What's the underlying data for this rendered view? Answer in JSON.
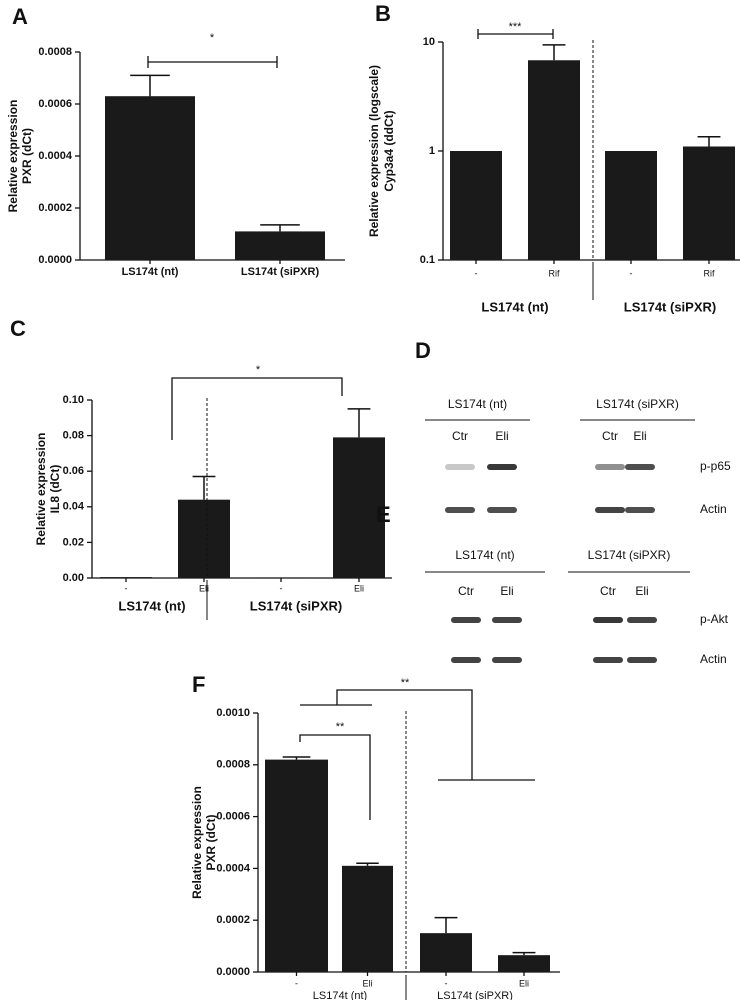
{
  "chart_data": [
    {
      "type": "bar",
      "panel": "A",
      "ylabel": [
        "Relative expression",
        "PXR (dCt)"
      ],
      "color": "#1a1a1a",
      "categories": [
        "LS174t (nt)",
        "LS174t (siPXR)"
      ],
      "values": [
        0.00063,
        0.00011
      ],
      "errors": [
        8e-05,
        2.5e-05
      ],
      "ylim": [
        0,
        0.0008
      ],
      "yticks": [
        {
          "value": 0,
          "label": "0.0000"
        },
        0.0002,
        0.0004,
        0.0006,
        0.0008
      ],
      "significance": [
        "*"
      ]
    },
    {
      "type": "bar",
      "panel": "B",
      "ylabel": [
        "Relative expression (logscale)",
        "Cyp3a4 (ddCt)"
      ],
      "color": "#1a1a1a",
      "categories": [
        "-",
        "Rif",
        "-",
        "Rif"
      ],
      "values": [
        1,
        6.8,
        1,
        1.1
      ],
      "errors": [
        0,
        2.6,
        0,
        0.25
      ],
      "yscale": "log",
      "ylim": [
        0.1,
        10
      ],
      "yticks": [
        0.1,
        1,
        10
      ],
      "groups": [
        "LS174t (nt)",
        "LS174t (siPXR)"
      ],
      "significance": [
        "***"
      ]
    },
    {
      "type": "bar",
      "panel": "C",
      "ylabel": [
        "Relative expression",
        "IL8 (dCt)"
      ],
      "color": "#1a1a1a",
      "categories": [
        "-",
        "Eli",
        "-",
        "Eli"
      ],
      "values": [
        0.0005,
        0.044,
        0.0003,
        0.079
      ],
      "errors": [
        0,
        0.013,
        0,
        0.016
      ],
      "ylim": [
        0,
        0.1
      ],
      "yticks": [
        {
          "value": 0,
          "label": "0.00"
        },
        0.02,
        0.04,
        0.06,
        0.08,
        {
          "value": 0.1,
          "label": "0.10"
        }
      ],
      "groups": [
        "LS174t (nt)",
        "LS174t (siPXR)"
      ],
      "significance": [
        "*"
      ]
    },
    {
      "type": "bar",
      "panel": "F",
      "ylabel": [
        "Relative expression",
        "PXR (dCt)"
      ],
      "color": "#1a1a1a",
      "categories": [
        "-",
        "Eli",
        "-",
        "Eli"
      ],
      "values": [
        0.00082,
        0.00041,
        0.00015,
        6.5e-05
      ],
      "errors": [
        1e-05,
        1e-05,
        6e-05,
        1e-05
      ],
      "ylim": [
        0,
        0.001
      ],
      "yticks": [
        {
          "value": 0,
          "label": "0.0000"
        },
        0.0002,
        0.0004,
        0.0006,
        0.0008,
        {
          "value": 0.001,
          "label": "0.0010"
        }
      ],
      "groups": [
        "LS174t (nt)",
        "LS174t (siPXR)"
      ],
      "significance": [
        "**",
        "**"
      ]
    }
  ],
  "blots": [
    {
      "panel": "D",
      "groups": [
        {
          "title": "LS174t (nt)",
          "lanes": [
            "Ctr",
            "Eli"
          ]
        },
        {
          "title": "LS174t (siPXR)",
          "lanes": [
            "Ctr",
            "Eli"
          ]
        }
      ],
      "rows": [
        "p-p65",
        "Actin"
      ]
    },
    {
      "panel": "E",
      "groups": [
        {
          "title": "LS174t (nt)",
          "lanes": [
            "Ctr",
            "Eli"
          ]
        },
        {
          "title": "LS174t (siPXR)",
          "lanes": [
            "Ctr",
            "Eli"
          ]
        }
      ],
      "rows": [
        "p-Akt",
        "Actin"
      ]
    }
  ]
}
